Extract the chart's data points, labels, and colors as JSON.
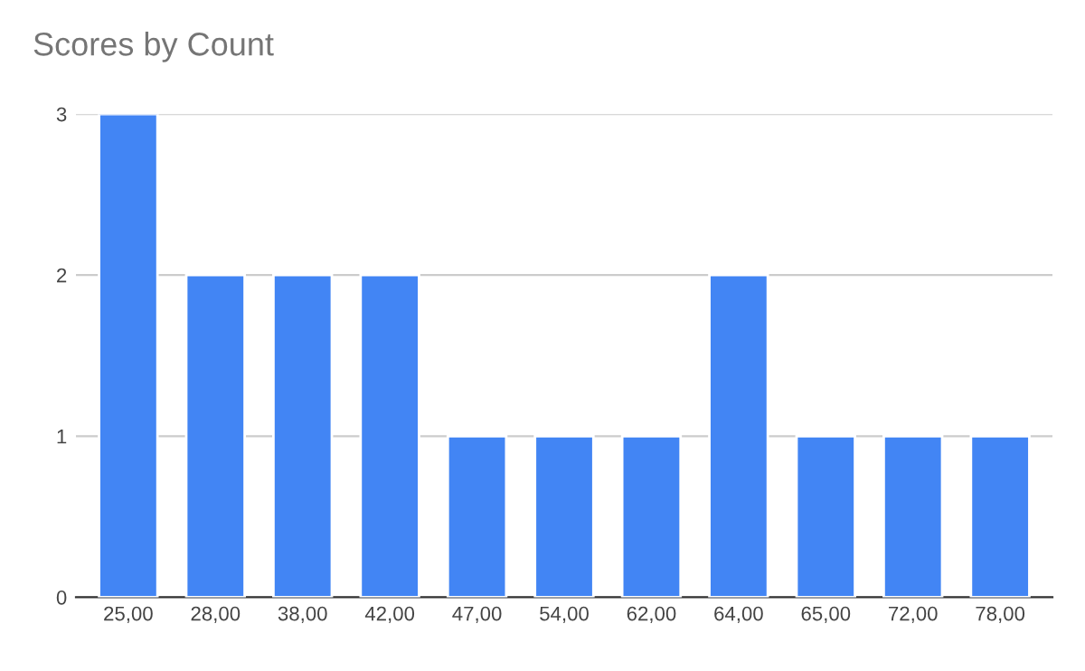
{
  "chart_data": {
    "type": "bar",
    "title": "Scores by Count",
    "categories": [
      "25,00",
      "28,00",
      "38,00",
      "42,00",
      "47,00",
      "54,00",
      "62,00",
      "64,00",
      "65,00",
      "72,00",
      "78,00"
    ],
    "values": [
      3,
      2,
      2,
      2,
      1,
      1,
      1,
      2,
      1,
      1,
      1
    ],
    "color": "#4285f4",
    "ylim": [
      0,
      3
    ],
    "yticks": [
      0,
      1,
      2,
      3
    ],
    "grid": "y",
    "legend": false
  }
}
